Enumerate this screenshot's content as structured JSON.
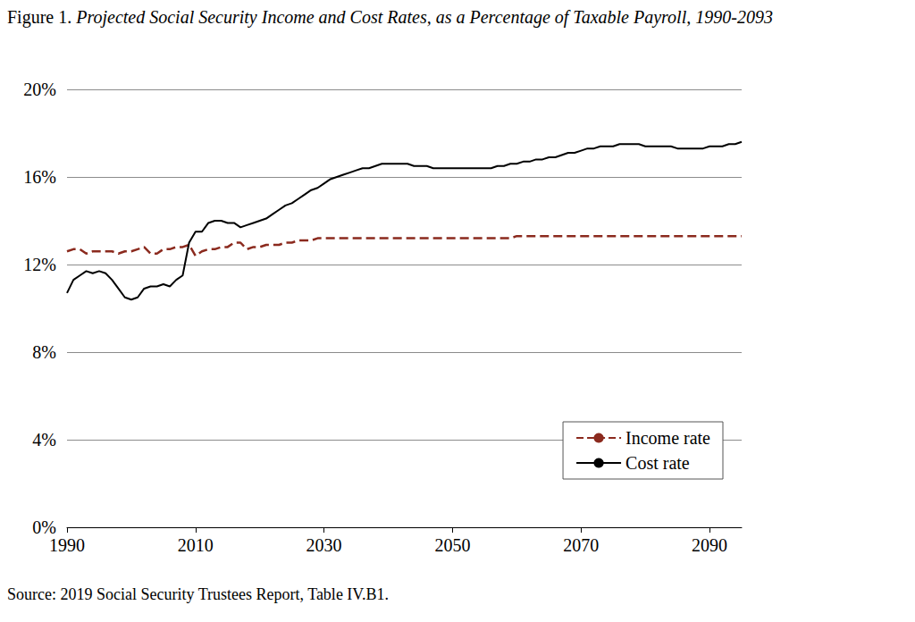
{
  "chart_data": {
    "type": "line",
    "title": "Figure 1. Projected Social Security Income and Cost Rates, as a Percentage of Taxable Payroll, 1990-2093",
    "source": "Source: 2019 Social Security Trustees Report, Table IV.B1.",
    "x": [
      1990,
      1991,
      1992,
      1993,
      1994,
      1995,
      1996,
      1997,
      1998,
      1999,
      2000,
      2001,
      2002,
      2003,
      2004,
      2005,
      2006,
      2007,
      2008,
      2009,
      2010,
      2011,
      2012,
      2013,
      2014,
      2015,
      2016,
      2017,
      2018,
      2019,
      2020,
      2021,
      2022,
      2023,
      2024,
      2025,
      2026,
      2027,
      2028,
      2029,
      2030,
      2031,
      2032,
      2033,
      2034,
      2035,
      2036,
      2037,
      2038,
      2039,
      2040,
      2041,
      2042,
      2043,
      2044,
      2045,
      2046,
      2047,
      2048,
      2049,
      2050,
      2051,
      2052,
      2053,
      2054,
      2055,
      2056,
      2057,
      2058,
      2059,
      2060,
      2061,
      2062,
      2063,
      2064,
      2065,
      2066,
      2067,
      2068,
      2069,
      2070,
      2071,
      2072,
      2073,
      2074,
      2075,
      2076,
      2077,
      2078,
      2079,
      2080,
      2081,
      2082,
      2083,
      2084,
      2085,
      2086,
      2087,
      2088,
      2089,
      2090,
      2091,
      2092,
      2093,
      2094,
      2095
    ],
    "series": [
      {
        "name": "Income rate",
        "color": "#8b2a1e",
        "line_style": "dashed",
        "values": [
          12.6,
          12.7,
          12.7,
          12.5,
          12.6,
          12.6,
          12.6,
          12.6,
          12.5,
          12.6,
          12.6,
          12.7,
          12.8,
          12.5,
          12.5,
          12.7,
          12.7,
          12.8,
          12.8,
          12.9,
          12.4,
          12.6,
          12.7,
          12.7,
          12.8,
          12.8,
          13.0,
          13.0,
          12.7,
          12.8,
          12.8,
          12.9,
          12.9,
          12.9,
          13.0,
          13.0,
          13.1,
          13.1,
          13.1,
          13.2,
          13.2,
          13.2,
          13.2,
          13.2,
          13.2,
          13.2,
          13.2,
          13.2,
          13.2,
          13.2,
          13.2,
          13.2,
          13.2,
          13.2,
          13.2,
          13.2,
          13.2,
          13.2,
          13.2,
          13.2,
          13.2,
          13.2,
          13.2,
          13.2,
          13.2,
          13.2,
          13.2,
          13.2,
          13.2,
          13.2,
          13.3,
          13.3,
          13.3,
          13.3,
          13.3,
          13.3,
          13.3,
          13.3,
          13.3,
          13.3,
          13.3,
          13.3,
          13.3,
          13.3,
          13.3,
          13.3,
          13.3,
          13.3,
          13.3,
          13.3,
          13.3,
          13.3,
          13.3,
          13.3,
          13.3,
          13.3,
          13.3,
          13.3,
          13.3,
          13.3,
          13.3,
          13.3,
          13.3,
          13.3,
          13.3,
          13.3
        ]
      },
      {
        "name": "Cost rate",
        "color": "#000000",
        "line_style": "solid",
        "values": [
          10.7,
          11.3,
          11.5,
          11.7,
          11.6,
          11.7,
          11.6,
          11.3,
          10.9,
          10.5,
          10.4,
          10.5,
          10.9,
          11.0,
          11.0,
          11.1,
          11.0,
          11.3,
          11.5,
          13.0,
          13.5,
          13.5,
          13.9,
          14.0,
          14.0,
          13.9,
          13.9,
          13.7,
          13.8,
          13.9,
          14.0,
          14.1,
          14.3,
          14.5,
          14.7,
          14.8,
          15.0,
          15.2,
          15.4,
          15.5,
          15.7,
          15.9,
          16.0,
          16.1,
          16.2,
          16.3,
          16.4,
          16.4,
          16.5,
          16.6,
          16.6,
          16.6,
          16.6,
          16.6,
          16.5,
          16.5,
          16.5,
          16.4,
          16.4,
          16.4,
          16.4,
          16.4,
          16.4,
          16.4,
          16.4,
          16.4,
          16.4,
          16.5,
          16.5,
          16.6,
          16.6,
          16.7,
          16.7,
          16.8,
          16.8,
          16.9,
          16.9,
          17.0,
          17.1,
          17.1,
          17.2,
          17.3,
          17.3,
          17.4,
          17.4,
          17.4,
          17.5,
          17.5,
          17.5,
          17.5,
          17.4,
          17.4,
          17.4,
          17.4,
          17.4,
          17.3,
          17.3,
          17.3,
          17.3,
          17.3,
          17.4,
          17.4,
          17.4,
          17.5,
          17.5,
          17.6
        ]
      }
    ],
    "xlim": [
      1990,
      2095
    ],
    "xticks": [
      1990,
      2010,
      2030,
      2050,
      2070,
      2090
    ],
    "ylim": [
      0,
      20
    ],
    "yticks": [
      {
        "value": 0,
        "label": "0%"
      },
      {
        "value": 4,
        "label": "4%"
      },
      {
        "value": 8,
        "label": "8%"
      },
      {
        "value": 12,
        "label": "12%"
      },
      {
        "value": 16,
        "label": "16%"
      },
      {
        "value": 20,
        "label": "20%"
      }
    ],
    "grid": true,
    "legend": "lower right"
  }
}
